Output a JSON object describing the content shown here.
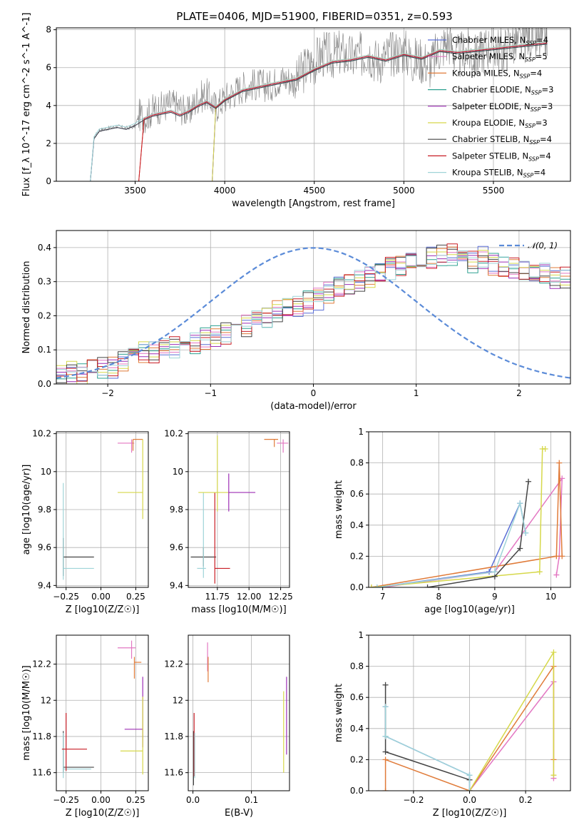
{
  "figure": {
    "title": "PLATE=0406, MJD=51900, FIBERID=0351, z=0.593"
  },
  "model_legend": [
    {
      "label": "Chabrier MILES, N",
      "sub": "SSP",
      "suffix": "=4",
      "color": "#5a6fd6"
    },
    {
      "label": "Salpeter MILES, N",
      "sub": "SSP",
      "suffix": "=5",
      "color": "#e377c2"
    },
    {
      "label": "Kroupa MILES, N",
      "sub": "SSP",
      "suffix": "=4",
      "color": "#e07b39"
    },
    {
      "label": "Chabrier ELODIE, N",
      "sub": "SSP",
      "suffix": "=3",
      "color": "#2ca090"
    },
    {
      "label": "Salpeter ELODIE, N",
      "sub": "SSP",
      "suffix": "=3",
      "color": "#9d2fb5"
    },
    {
      "label": "Kroupa ELODIE, N",
      "sub": "SSP",
      "suffix": "=3",
      "color": "#d6d84a"
    },
    {
      "label": "Chabrier STELIB, N",
      "sub": "SSP",
      "suffix": "=4",
      "color": "#444444"
    },
    {
      "label": "Salpeter STELIB, N",
      "sub": "SSP",
      "suffix": "=4",
      "color": "#c81d25"
    },
    {
      "label": "Kroupa STELIB, N",
      "sub": "SSP",
      "suffix": "=4",
      "color": "#9fd4d8"
    }
  ],
  "chart_data": [
    {
      "id": "spectrum",
      "type": "line",
      "xlabel": "wavelength [Angstrom, rest frame]",
      "ylabel": "Flux [f_λ 10^-17 erg cm^-2 s^-1 A^-1]",
      "xlim": [
        3060,
        5930
      ],
      "ylim": [
        0,
        8.1
      ],
      "xticks": [
        3500,
        4000,
        4500,
        5000,
        5500
      ],
      "yticks": [
        0,
        2,
        4,
        6,
        8
      ],
      "series": [
        {
          "name": "data",
          "color": "#808080",
          "x": [
            3250,
            3270,
            3300,
            3350,
            3400,
            3450,
            3500,
            3520,
            3560,
            3600,
            3650,
            3700,
            3750,
            3800,
            3850,
            3900,
            3950,
            4000,
            4050,
            4100,
            4150,
            4200,
            4250,
            4300,
            4350,
            4400,
            4450,
            4500,
            4550,
            4600,
            4650,
            4700,
            4750,
            4800,
            4850,
            4900,
            4950,
            5000,
            5050,
            5100,
            5150,
            5200,
            5250,
            5300,
            5350,
            5400,
            5450,
            5500,
            5550,
            5600,
            5650,
            5700,
            5750,
            5800
          ],
          "y": [
            0.0,
            2.3,
            2.7,
            2.8,
            2.9,
            2.8,
            2.9,
            3.5,
            3.4,
            3.8,
            3.9,
            4.1,
            3.9,
            3.6,
            4.4,
            4.6,
            3.9,
            4.4,
            4.7,
            5.0,
            5.1,
            5.1,
            5.0,
            5.4,
            5.4,
            5.2,
            6.0,
            6.3,
            6.7,
            6.6,
            6.8,
            6.5,
            6.6,
            6.9,
            6.3,
            6.6,
            6.8,
            6.9,
            6.4,
            6.4,
            6.1,
            7.0,
            7.4,
            6.5,
            6.9,
            6.5,
            7.0,
            7.2,
            6.8,
            7.3,
            7.2,
            7.7,
            7.3,
            7.6
          ]
        },
        {
          "name": "model",
          "color": "#9fd4d8",
          "x": [
            3250,
            3270,
            3300,
            3350,
            3400,
            3450,
            3500,
            3550,
            3600,
            3650,
            3700,
            3750,
            3800,
            3850,
            3900,
            3950,
            4000,
            4100,
            4200,
            4300,
            4400,
            4500,
            4600,
            4700,
            4800,
            4900,
            5000,
            5100,
            5200,
            5300,
            5400,
            5500,
            5600,
            5700,
            5800
          ],
          "y": [
            0.0,
            2.3,
            2.7,
            2.8,
            2.9,
            2.8,
            3.0,
            3.3,
            3.5,
            3.6,
            3.7,
            3.5,
            3.7,
            4.0,
            4.2,
            3.9,
            4.3,
            4.8,
            5.0,
            5.2,
            5.4,
            5.9,
            6.3,
            6.4,
            6.6,
            6.4,
            6.7,
            6.5,
            6.9,
            6.8,
            6.9,
            7.0,
            7.1,
            7.2,
            7.3
          ]
        }
      ]
    },
    {
      "id": "residuals",
      "type": "line",
      "xlabel": "(data-model)/error",
      "ylabel": "Normed distribution",
      "xlim": [
        -2.5,
        2.5
      ],
      "ylim": [
        0,
        0.45
      ],
      "xticks": [
        -2,
        -1,
        0,
        1,
        2
      ],
      "yticks": [
        0.0,
        0.1,
        0.2,
        0.3,
        0.4
      ],
      "legend": "𝒩(0, 1)",
      "legend_loc": "upper right",
      "normal_curve": {
        "mu": 0,
        "sigma": 1,
        "color": "#5b8bd8"
      },
      "histogram": {
        "bin_width": 0.1,
        "x_start": -2.5,
        "base_values": [
          0.03,
          0.04,
          0.03,
          0.04,
          0.05,
          0.05,
          0.06,
          0.08,
          0.09,
          0.09,
          0.1,
          0.11,
          0.12,
          0.12,
          0.13,
          0.14,
          0.15,
          0.16,
          0.17,
          0.18,
          0.2,
          0.21,
          0.22,
          0.23,
          0.24,
          0.25,
          0.27,
          0.28,
          0.29,
          0.3,
          0.31,
          0.33,
          0.34,
          0.34,
          0.35,
          0.36,
          0.37,
          0.38,
          0.38,
          0.37,
          0.36,
          0.37,
          0.35,
          0.35,
          0.34,
          0.33,
          0.32,
          0.33,
          0.31,
          0.31,
          0.3,
          0.29,
          0.28,
          0.27,
          0.26,
          0.25,
          0.24,
          0.23,
          0.22,
          0.21,
          0.2,
          0.19,
          0.18,
          0.17,
          0.16,
          0.15,
          0.14,
          0.13,
          0.12,
          0.11,
          0.1,
          0.1,
          0.09,
          0.08,
          0.08,
          0.07,
          0.07,
          0.06,
          0.06,
          0.06
        ]
      }
    },
    {
      "id": "age_vs_Z",
      "type": "scatter",
      "xlabel": "Z [log10(Z/Z☉)]",
      "ylabel": "age [log10(age/yr)]",
      "xlim": [
        -0.32,
        0.34
      ],
      "ylim": [
        9.39,
        10.21
      ],
      "xticks": [
        -0.25,
        0.0,
        0.25
      ],
      "xticklabels": [
        "−0.25",
        "0.00",
        "0.25"
      ],
      "yticks": [
        9.4,
        9.6,
        9.8,
        10.0,
        10.2
      ],
      "points": [
        {
          "x": -0.27,
          "y": 9.55,
          "xerr": [
            0.0,
            0.22
          ],
          "yerr": [
            0.1,
            0.1
          ],
          "model": 6
        },
        {
          "x": -0.27,
          "y": 9.49,
          "xerr": [
            0.0,
            0.22
          ],
          "yerr": [
            0.06,
            0.45
          ],
          "model": 8
        },
        {
          "x": 0.22,
          "y": 10.15,
          "xerr": [
            0.1,
            0.02
          ],
          "yerr": [
            0.05,
            0.02
          ],
          "model": 1
        },
        {
          "x": 0.23,
          "y": 10.17,
          "xerr": [
            0.0,
            0.07
          ],
          "yerr": [
            0.06,
            0.0
          ],
          "model": 2
        },
        {
          "x": 0.3,
          "y": 9.89,
          "xerr": [
            0.18,
            0.0
          ],
          "yerr": [
            0.14,
            0.28
          ],
          "model": 5
        }
      ]
    },
    {
      "id": "age_vs_mass",
      "type": "scatter",
      "xlabel": "mass [log10(M/M☉)]",
      "ylabel": "",
      "xlim": [
        11.52,
        12.32
      ],
      "ylim": [
        9.39,
        10.21
      ],
      "xticks": [
        11.75,
        12.0,
        12.25
      ],
      "xticklabels": [
        "11.75",
        "12.00",
        "12.25"
      ],
      "yticks": [
        9.4,
        9.6,
        9.8,
        10.0,
        10.2
      ],
      "points": [
        {
          "x": 11.64,
          "y": 9.55,
          "xerr": [
            0.1,
            0.1
          ],
          "yerr": [
            0.05,
            0.05
          ],
          "model": 6
        },
        {
          "x": 11.64,
          "y": 9.49,
          "xerr": [
            0.05,
            0.02
          ],
          "yerr": [
            0.05,
            0.4
          ],
          "model": 8
        },
        {
          "x": 11.73,
          "y": 9.49,
          "xerr": [
            0.0,
            0.12
          ],
          "yerr": [
            0.08,
            0.4
          ],
          "model": 7
        },
        {
          "x": 11.75,
          "y": 9.89,
          "xerr": [
            0.15,
            0.1
          ],
          "yerr": [
            0.1,
            0.3
          ],
          "model": 5
        },
        {
          "x": 11.84,
          "y": 9.89,
          "xerr": [
            0.0,
            0.21
          ],
          "yerr": [
            0.1,
            0.1
          ],
          "model": 4
        },
        {
          "x": 12.2,
          "y": 10.17,
          "xerr": [
            0.08,
            0.03
          ],
          "yerr": [
            0.04,
            0.0
          ],
          "model": 2
        },
        {
          "x": 12.27,
          "y": 10.15,
          "xerr": [
            0.05,
            0.04
          ],
          "yerr": [
            0.05,
            0.02
          ],
          "model": 1
        }
      ]
    },
    {
      "id": "mass_weight_vs_age",
      "type": "line",
      "xlabel": "age [log10(age/yr)]",
      "ylabel": "mass weight",
      "xlim": [
        6.75,
        10.35
      ],
      "ylim": [
        0,
        1.0
      ],
      "xticks": [
        7,
        8,
        9,
        10
      ],
      "yticks": [
        0.0,
        0.2,
        0.4,
        0.6,
        0.8,
        1.0
      ],
      "series": [
        {
          "model": 0,
          "x": [
            6.9,
            8.9,
            9.45,
            9.55
          ],
          "y": [
            0.0,
            0.1,
            0.54,
            0.35
          ]
        },
        {
          "model": 1,
          "x": [
            7.0,
            9.0,
            10.2,
            10.15,
            10.1
          ],
          "y": [
            0.0,
            0.1,
            0.7,
            0.2,
            0.08
          ]
        },
        {
          "model": 2,
          "x": [
            6.8,
            10.1,
            10.15,
            10.2
          ],
          "y": [
            0.0,
            0.2,
            0.8,
            0.2
          ]
        },
        {
          "model": 5,
          "x": [
            6.8,
            9.8,
            9.85,
            9.9
          ],
          "y": [
            0.0,
            0.1,
            0.89,
            0.89
          ]
        },
        {
          "model": 6,
          "x": [
            7.8,
            9.0,
            9.45,
            9.6
          ],
          "y": [
            0.0,
            0.07,
            0.25,
            0.68
          ]
        },
        {
          "model": 8,
          "x": [
            6.9,
            9.0,
            9.45,
            9.55
          ],
          "y": [
            0.0,
            0.1,
            0.54,
            0.35
          ]
        }
      ]
    },
    {
      "id": "mass_vs_Z",
      "type": "scatter",
      "xlabel": "Z [log10(Z/Z☉)]",
      "ylabel": "mass [log10(M/M☉)]",
      "xlim": [
        -0.32,
        0.34
      ],
      "ylim": [
        11.5,
        12.36
      ],
      "xticks": [
        -0.25,
        0.0,
        0.25
      ],
      "xticklabels": [
        "−0.25",
        "0.00",
        "0.25"
      ],
      "yticks": [
        11.6,
        11.8,
        12.0,
        12.2
      ],
      "points": [
        {
          "x": -0.27,
          "y": 11.63,
          "xerr": [
            0.0,
            0.22
          ],
          "yerr": [
            0.03,
            0.2
          ],
          "model": 6
        },
        {
          "x": -0.27,
          "y": 11.62,
          "xerr": [
            0.0,
            0.2
          ],
          "yerr": [
            0.05,
            0.2
          ],
          "model": 8
        },
        {
          "x": -0.25,
          "y": 11.73,
          "xerr": [
            0.03,
            0.15
          ],
          "yerr": [
            0.12,
            0.2
          ],
          "model": 7
        },
        {
          "x": 0.22,
          "y": 12.29,
          "xerr": [
            0.1,
            0.03
          ],
          "yerr": [
            0.06,
            0.04
          ],
          "model": 1
        },
        {
          "x": 0.24,
          "y": 12.21,
          "xerr": [
            0.0,
            0.05
          ],
          "yerr": [
            0.09,
            0.03
          ],
          "model": 2
        },
        {
          "x": 0.3,
          "y": 11.84,
          "xerr": [
            0.13,
            0.0
          ],
          "yerr": [
            0.1,
            0.29
          ],
          "model": 4
        },
        {
          "x": 0.3,
          "y": 11.72,
          "xerr": [
            0.16,
            0.0
          ],
          "yerr": [
            0.13,
            0.3
          ],
          "model": 5
        }
      ]
    },
    {
      "id": "mass_vs_EBV",
      "type": "scatter",
      "xlabel": "E(B-V)",
      "ylabel": "",
      "xlim": [
        -0.008,
        0.165
      ],
      "ylim": [
        11.5,
        12.36
      ],
      "xticks": [
        0.0,
        0.1
      ],
      "xticklabels": [
        "0.0",
        "0.1"
      ],
      "yticks": [
        11.6,
        11.8,
        12.0,
        12.2
      ],
      "points": [
        {
          "x": 0.001,
          "y": 11.63,
          "xerr": [
            0,
            0
          ],
          "yerr": [
            0.1,
            0.2
          ],
          "model": 6
        },
        {
          "x": 0.002,
          "y": 11.73,
          "xerr": [
            0,
            0
          ],
          "yerr": [
            0.15,
            0.2
          ],
          "model": 7
        },
        {
          "x": 0.003,
          "y": 11.62,
          "xerr": [
            0,
            0
          ],
          "yerr": [
            0.05,
            0.2
          ],
          "model": 8
        },
        {
          "x": 0.025,
          "y": 12.24,
          "xerr": [
            0,
            0
          ],
          "yerr": [
            0.08,
            0.08
          ],
          "model": 1
        },
        {
          "x": 0.026,
          "y": 12.2,
          "xerr": [
            0,
            0
          ],
          "yerr": [
            0.1,
            0.04
          ],
          "model": 2
        },
        {
          "x": 0.155,
          "y": 11.85,
          "xerr": [
            0,
            0
          ],
          "yerr": [
            0.25,
            0.2
          ],
          "model": 5
        },
        {
          "x": 0.16,
          "y": 11.9,
          "xerr": [
            0,
            0
          ],
          "yerr": [
            0.2,
            0.23
          ],
          "model": 4
        }
      ]
    },
    {
      "id": "mass_weight_vs_Z",
      "type": "line",
      "xlabel": "Z [log10(Z/Z☉)]",
      "ylabel": "mass weight",
      "xlim": [
        -0.36,
        0.36
      ],
      "ylim": [
        0,
        1.0
      ],
      "xticks": [
        -0.2,
        0.0,
        0.2
      ],
      "xticklabels": [
        "−0.2",
        "0.0",
        "0.2"
      ],
      "yticks": [
        0.0,
        0.2,
        0.4,
        0.6,
        0.8,
        1.0
      ],
      "series": [
        {
          "model": 0,
          "x": [
            -0.3,
            -0.3,
            0.0,
            0.0
          ],
          "y": [
            0.54,
            0.35,
            0.1,
            0.0
          ]
        },
        {
          "model": 1,
          "x": [
            0.0,
            0.3,
            0.3
          ],
          "y": [
            0.0,
            0.7,
            0.08
          ]
        },
        {
          "model": 2,
          "x": [
            -0.3,
            -0.3,
            0.0,
            0.3,
            0.3
          ],
          "y": [
            0.0,
            0.2,
            0.0,
            0.8,
            0.2
          ]
        },
        {
          "model": 5,
          "x": [
            0.0,
            0.3,
            0.3
          ],
          "y": [
            0.0,
            0.89,
            0.1
          ]
        },
        {
          "model": 6,
          "x": [
            -0.3,
            -0.3,
            0.0
          ],
          "y": [
            0.68,
            0.25,
            0.07
          ]
        },
        {
          "model": 8,
          "x": [
            -0.3,
            -0.3,
            0.0,
            0.0
          ],
          "y": [
            0.54,
            0.35,
            0.1,
            0.0
          ]
        }
      ]
    }
  ]
}
